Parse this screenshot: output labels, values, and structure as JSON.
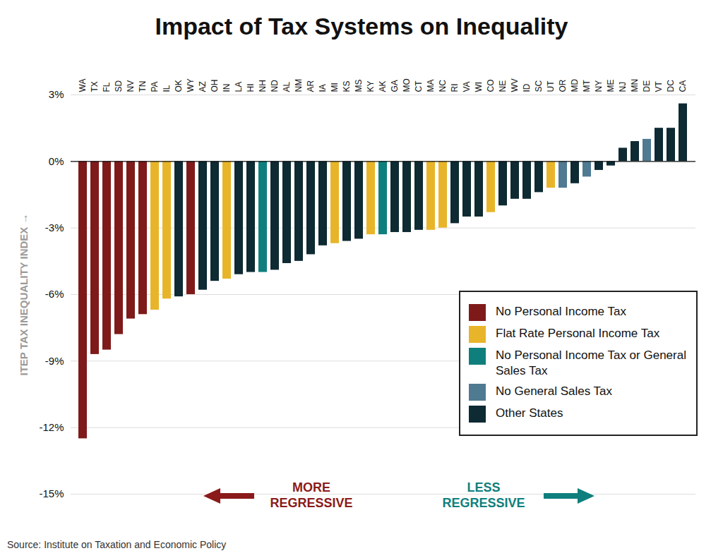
{
  "chart_data": {
    "type": "bar",
    "title": "Impact of Tax Systems on Inequality",
    "y_label": "ITEP TAX INEQUALITY INDEX",
    "source": "Source: Institute on Taxation and Economic Policy",
    "annotations": [
      "MORE REGRESSIVE",
      "LESS REGRESSIVE"
    ],
    "categories": [
      "WA",
      "TX",
      "FL",
      "SD",
      "NV",
      "TN",
      "PA",
      "IL",
      "OK",
      "WY",
      "AZ",
      "OH",
      "IN",
      "LA",
      "HI",
      "NH",
      "ND",
      "AL",
      "NM",
      "AR",
      "IA",
      "MI",
      "KS",
      "MS",
      "KY",
      "AK",
      "GA",
      "MO",
      "CT",
      "MA",
      "NC",
      "RI",
      "VA",
      "WI",
      "CO",
      "NE",
      "WV",
      "ID",
      "SC",
      "UT",
      "OR",
      "MD",
      "MT",
      "NY",
      "ME",
      "NJ",
      "MN",
      "DE",
      "VT",
      "DC",
      "CA"
    ],
    "series": [
      {
        "name": "No Personal Income Tax",
        "color": "#7f1a1a",
        "values": [
          -12.5,
          -8.7,
          -8.5,
          -7.8,
          -7.1,
          -6.9,
          null,
          null,
          null,
          -6.0,
          null,
          null,
          null,
          null,
          null,
          null,
          null,
          null,
          null,
          null,
          null,
          null,
          null,
          null,
          null,
          null,
          null,
          null,
          null,
          null,
          null,
          null,
          null,
          null,
          null,
          null,
          null,
          null,
          null,
          null,
          null,
          null,
          null,
          null,
          null,
          null,
          null,
          null,
          null,
          null,
          null
        ]
      },
      {
        "name": "Flat Rate Personal Income Tax",
        "color": "#e8b52a",
        "values": [
          null,
          null,
          null,
          null,
          null,
          null,
          -6.7,
          -6.2,
          null,
          null,
          null,
          null,
          -5.3,
          null,
          null,
          null,
          null,
          null,
          null,
          null,
          null,
          -3.7,
          null,
          null,
          -3.3,
          null,
          null,
          null,
          null,
          -3.1,
          -3.0,
          null,
          null,
          null,
          -2.3,
          null,
          null,
          null,
          null,
          -1.2,
          null,
          null,
          null,
          null,
          null,
          null,
          null,
          null,
          null,
          null,
          null
        ]
      },
      {
        "name": "No Personal Income Tax or General Sales Tax",
        "color": "#0f7f7d",
        "values": [
          null,
          null,
          null,
          null,
          null,
          null,
          null,
          null,
          null,
          null,
          null,
          null,
          null,
          null,
          null,
          -5.0,
          null,
          null,
          null,
          null,
          null,
          null,
          null,
          null,
          null,
          -3.3,
          null,
          null,
          null,
          null,
          null,
          null,
          null,
          null,
          null,
          null,
          null,
          null,
          null,
          null,
          null,
          null,
          null,
          null,
          null,
          null,
          null,
          null,
          null,
          null,
          null
        ]
      },
      {
        "name": "No General Sales Tax",
        "color": "#4f7a91",
        "values": [
          null,
          null,
          null,
          null,
          null,
          null,
          null,
          null,
          null,
          null,
          null,
          null,
          null,
          null,
          null,
          null,
          null,
          null,
          null,
          null,
          null,
          null,
          null,
          null,
          null,
          null,
          null,
          null,
          null,
          null,
          null,
          null,
          null,
          null,
          null,
          null,
          null,
          null,
          null,
          null,
          -1.2,
          null,
          -0.7,
          null,
          null,
          null,
          null,
          1.0,
          null,
          null,
          null
        ]
      },
      {
        "name": "Other States",
        "color": "#0e2a33",
        "values": [
          null,
          null,
          null,
          null,
          null,
          null,
          null,
          null,
          -6.1,
          null,
          -5.8,
          -5.4,
          null,
          -5.1,
          -5.0,
          null,
          -4.9,
          -4.6,
          -4.5,
          -4.2,
          -3.8,
          null,
          -3.6,
          -3.5,
          null,
          null,
          -3.2,
          -3.2,
          -3.1,
          null,
          null,
          -2.8,
          -2.5,
          -2.5,
          null,
          -2.0,
          -1.7,
          -1.7,
          -1.4,
          null,
          null,
          -1.0,
          null,
          -0.4,
          -0.2,
          0.6,
          0.9,
          null,
          1.5,
          1.5,
          2.6
        ]
      }
    ],
    "ylim": [
      -15,
      3
    ],
    "yticks": [
      {
        "value": -15,
        "label": "-15%"
      },
      {
        "value": -12,
        "label": "-12%"
      },
      {
        "value": -9,
        "label": "-9%"
      },
      {
        "value": -6,
        "label": "-6%"
      },
      {
        "value": -3,
        "label": "-3%"
      },
      {
        "value": 0,
        "label": "0%"
      },
      {
        "value": 3,
        "label": "3%"
      }
    ],
    "grid": true,
    "legend": "lower right"
  }
}
